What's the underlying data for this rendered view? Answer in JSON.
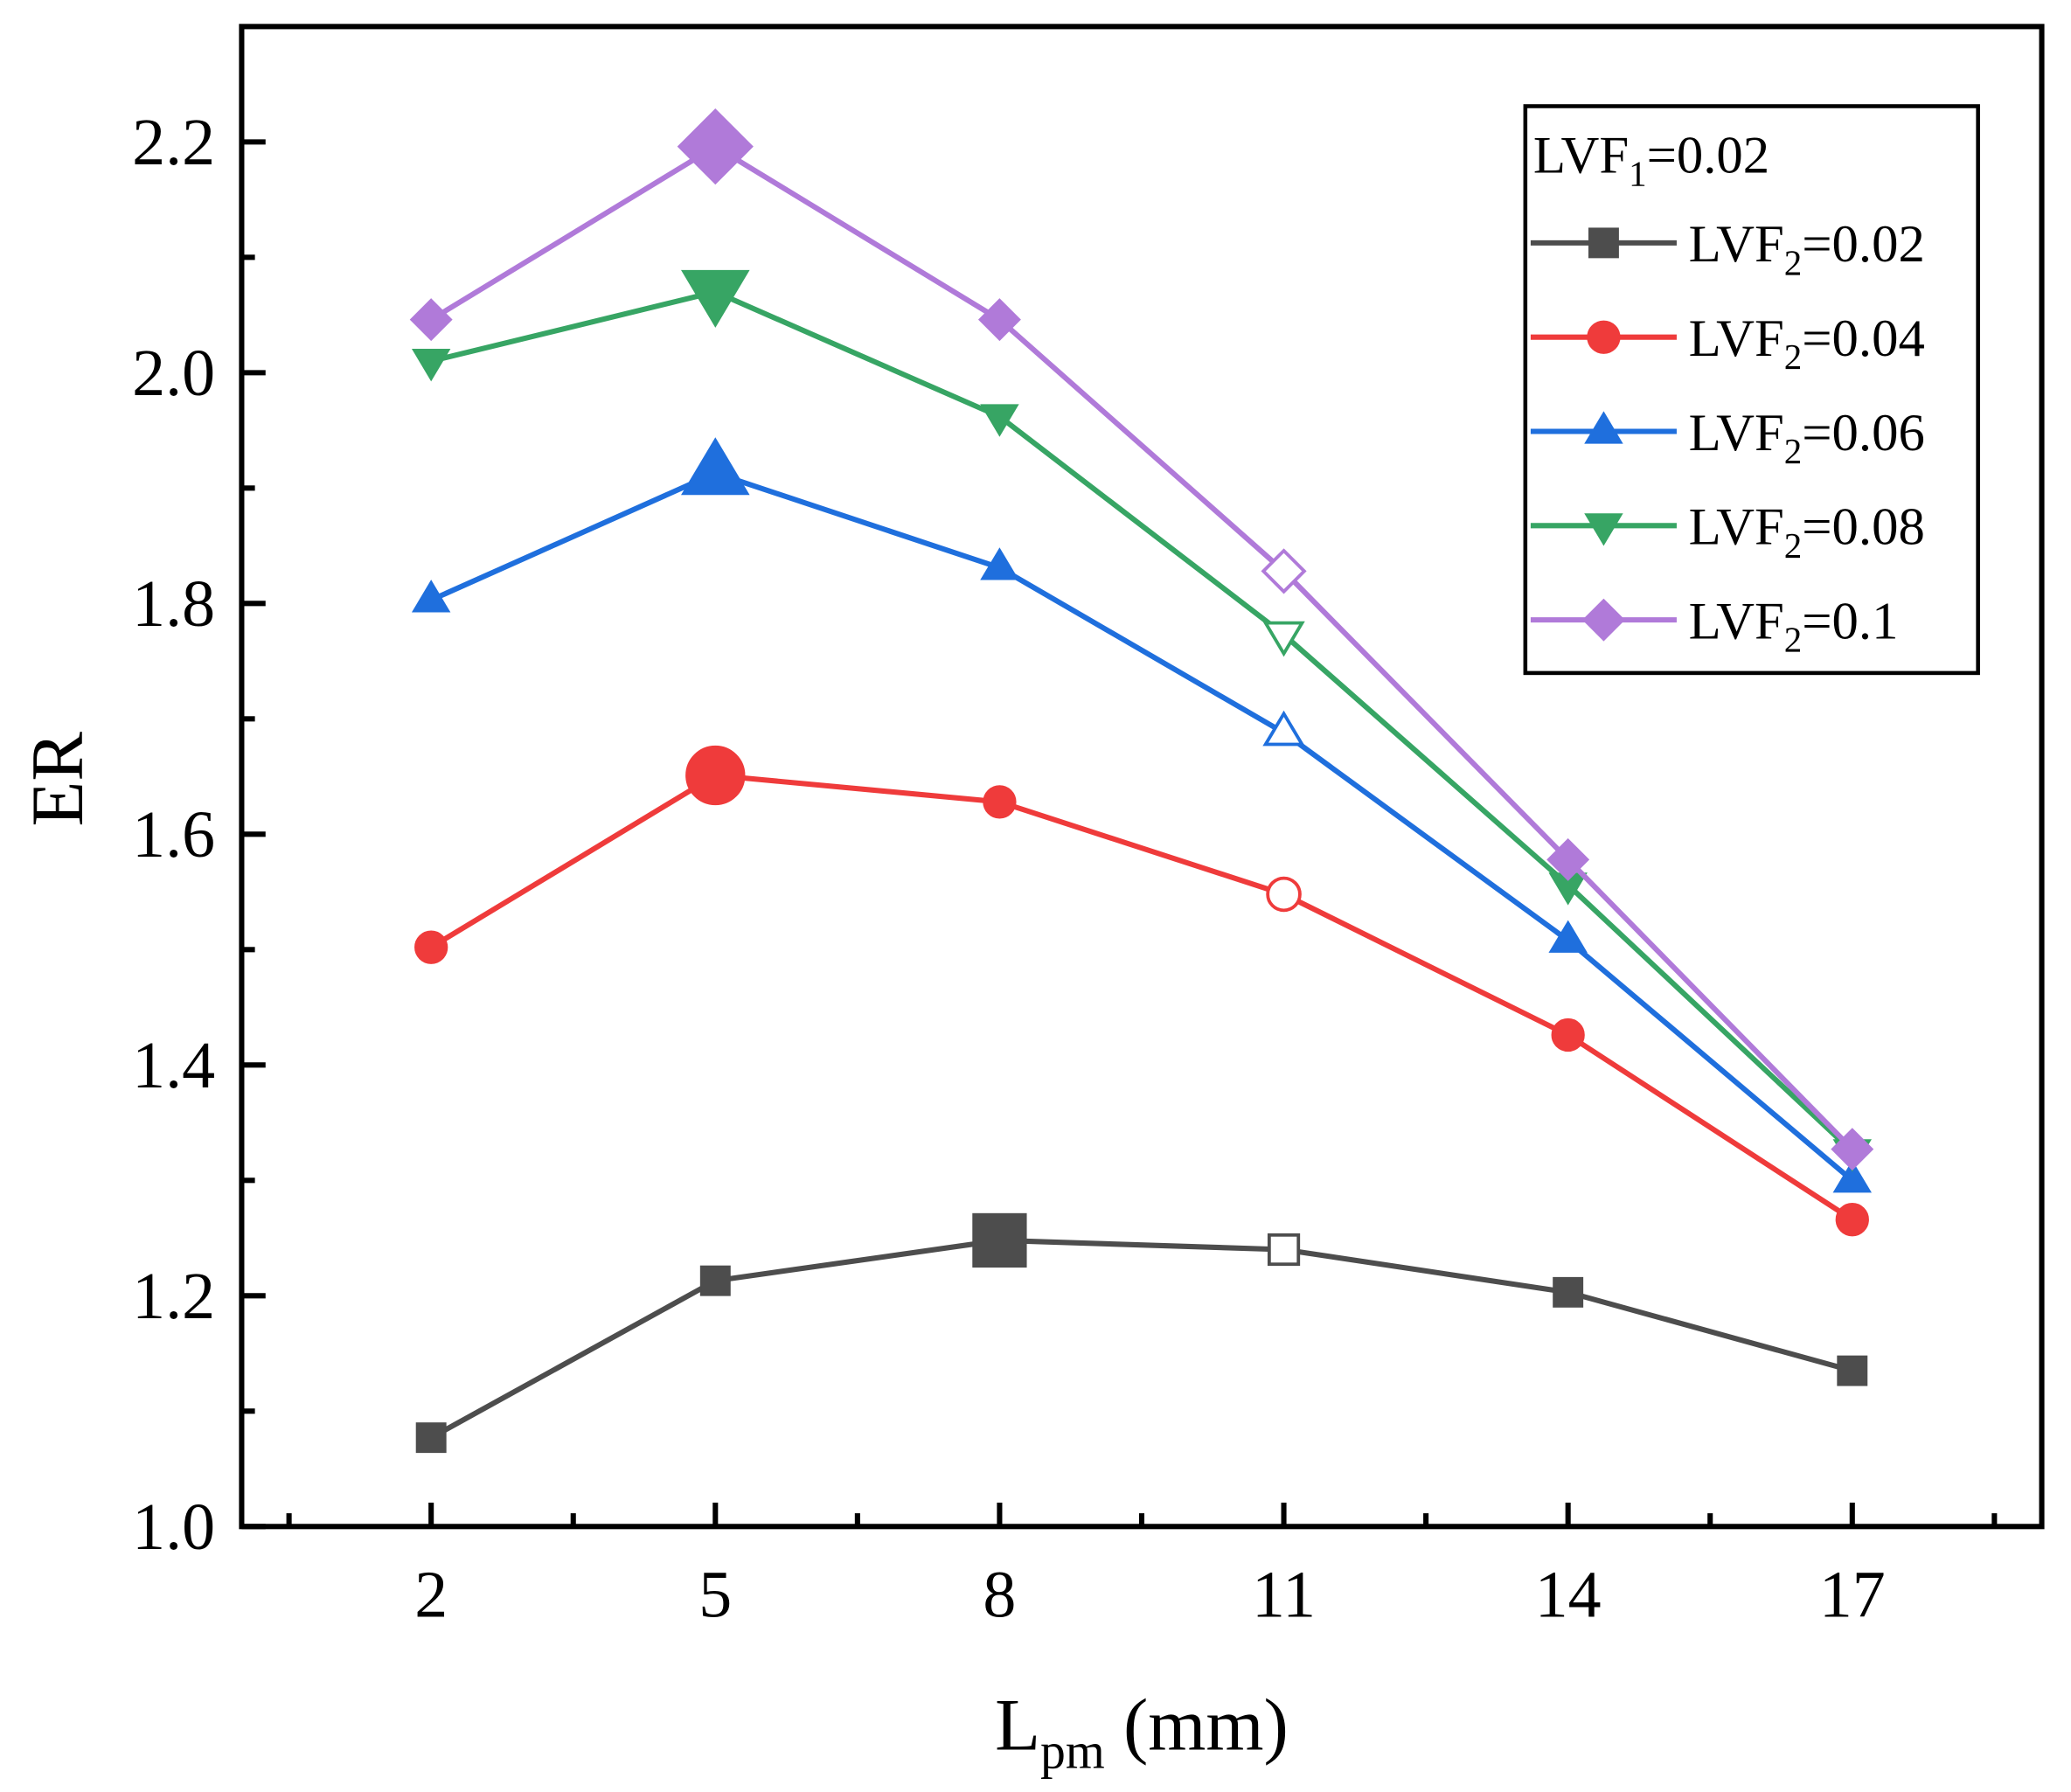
{
  "chart_data": {
    "type": "line",
    "xlabel_main": "L",
    "xlabel_sub": "pm",
    "xlabel_unit": " (mm)",
    "ylabel": "ER",
    "xlim": [
      0,
      19
    ],
    "ylim": [
      1.0,
      2.3
    ],
    "x": [
      2,
      5,
      8,
      11,
      14,
      17
    ],
    "xticks": [
      "2",
      "5",
      "8",
      "11",
      "14",
      "17"
    ],
    "yticks": [
      "1.0",
      "1.2",
      "1.4",
      "1.6",
      "1.8",
      "2.0",
      "2.2"
    ],
    "legend_position": "top-right",
    "legend_title": {
      "main": "LVF",
      "sub": "1",
      "value": "=0.02"
    },
    "series": [
      {
        "name": "LVF2=0.02",
        "label_main": "LVF",
        "label_sub": "2",
        "label_value": "=0.02",
        "color": "#4d4d4d",
        "marker": "square",
        "values": [
          1.077,
          1.213,
          1.248,
          1.24,
          1.203,
          1.135
        ],
        "big_index": 2,
        "hollow_index": 3
      },
      {
        "name": "LVF2=0.04",
        "label_main": "LVF",
        "label_sub": "2",
        "label_value": "=0.04",
        "color": "#ef3b3b",
        "marker": "circle",
        "values": [
          1.502,
          1.651,
          1.628,
          1.548,
          1.426,
          1.266
        ],
        "big_index": 1,
        "hollow_index": 3
      },
      {
        "name": "LVF2=0.06",
        "label_main": "LVF",
        "label_sub": "2",
        "label_value": "=0.06",
        "color": "#1f6fdd",
        "marker": "triangle-up",
        "values": [
          1.803,
          1.913,
          1.831,
          1.688,
          1.508,
          1.3
        ],
        "big_index": 1,
        "hollow_index": 3
      },
      {
        "name": "LVF2=0.08",
        "label_main": "LVF",
        "label_sub": "2",
        "label_value": "=0.08",
        "color": "#37a564",
        "marker": "triangle-down",
        "values": [
          2.01,
          2.07,
          1.962,
          1.773,
          1.556,
          1.325
        ],
        "big_index": 1,
        "hollow_index": 3
      },
      {
        "name": "LVF2=0.1",
        "label_main": "LVF",
        "label_sub": "2",
        "label_value": "=0.1",
        "color": "#b07ad9",
        "marker": "diamond",
        "values": [
          2.046,
          2.196,
          2.046,
          1.828,
          1.578,
          1.327
        ],
        "big_index": 1,
        "hollow_index": 3
      }
    ]
  }
}
